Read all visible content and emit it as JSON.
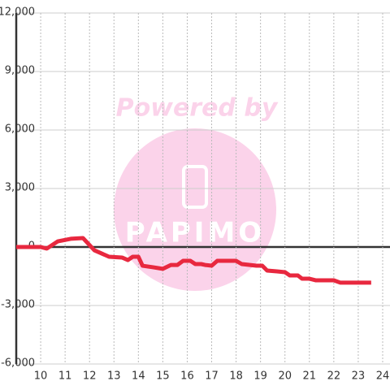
{
  "chart_data": {
    "type": "line",
    "watermark": {
      "text": "Powered by",
      "logo": "PAPIMO"
    },
    "x": [
      9.0,
      10.0,
      10.25,
      10.7,
      11.23,
      11.73,
      12.2,
      12.8,
      13.33,
      13.57,
      13.77,
      14.0,
      14.17,
      14.6,
      15.0,
      15.33,
      15.6,
      15.83,
      16.13,
      16.33,
      16.57,
      16.73,
      17.0,
      17.23,
      18.0,
      18.23,
      18.57,
      18.83,
      19.07,
      19.27,
      19.67,
      20.0,
      20.2,
      20.53,
      20.7,
      21.0,
      21.27,
      22.0,
      22.27,
      23.53
    ],
    "values": [
      0,
      0,
      -80,
      290,
      420,
      460,
      -170,
      -500,
      -540,
      -670,
      -500,
      -500,
      -960,
      -1040,
      -1120,
      -920,
      -920,
      -710,
      -710,
      -875,
      -875,
      -920,
      -960,
      -710,
      -710,
      -875,
      -920,
      -960,
      -960,
      -1210,
      -1250,
      -1290,
      -1460,
      -1460,
      -1625,
      -1625,
      -1710,
      -1710,
      -1830,
      -1830
    ],
    "color": "#e8283f",
    "xlim": [
      9,
      24.3
    ],
    "xticks": [
      10,
      11,
      12,
      13,
      14,
      15,
      16,
      17,
      18,
      19,
      20,
      21,
      22,
      23,
      24
    ],
    "ylim": [
      -6000,
      12000
    ],
    "yticks": [
      {
        "value": -6000,
        "label": "-6,000"
      },
      {
        "value": -3000,
        "label": "-3,000"
      },
      0,
      {
        "value": 3000,
        "label": "3,000"
      },
      {
        "value": 6000,
        "label": "6,000"
      },
      {
        "value": 9000,
        "label": "9,000"
      },
      {
        "value": 12000,
        "label": "12,000"
      }
    ],
    "grid": true
  }
}
